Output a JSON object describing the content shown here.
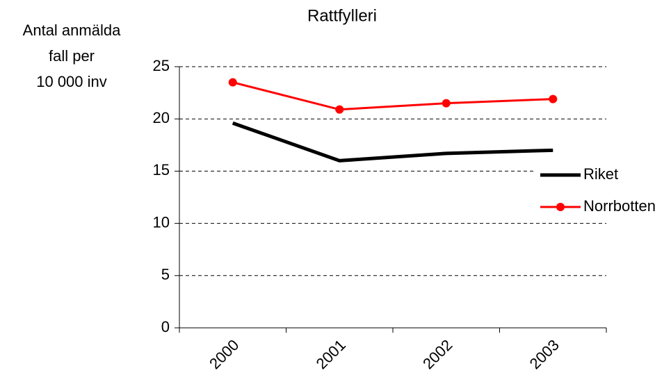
{
  "chart_data": {
    "type": "line",
    "title": "Rattfylleri",
    "ylabel": [
      "Antal anmälda",
      "fall per",
      "10 000 inv"
    ],
    "categories": [
      "2000",
      "2001",
      "2002",
      "2003"
    ],
    "series": [
      {
        "name": "Riket",
        "color": "#000000",
        "values": [
          19.6,
          16.0,
          16.7,
          17.0
        ]
      },
      {
        "name": "Norrbotten",
        "color": "#ff0000",
        "values": [
          23.5,
          20.9,
          21.5,
          21.9
        ],
        "marker": "circle"
      }
    ],
    "ylim": [
      0,
      25
    ],
    "yticks": [
      0,
      5,
      10,
      15,
      20,
      25
    ],
    "grid": true,
    "legend": "right"
  }
}
